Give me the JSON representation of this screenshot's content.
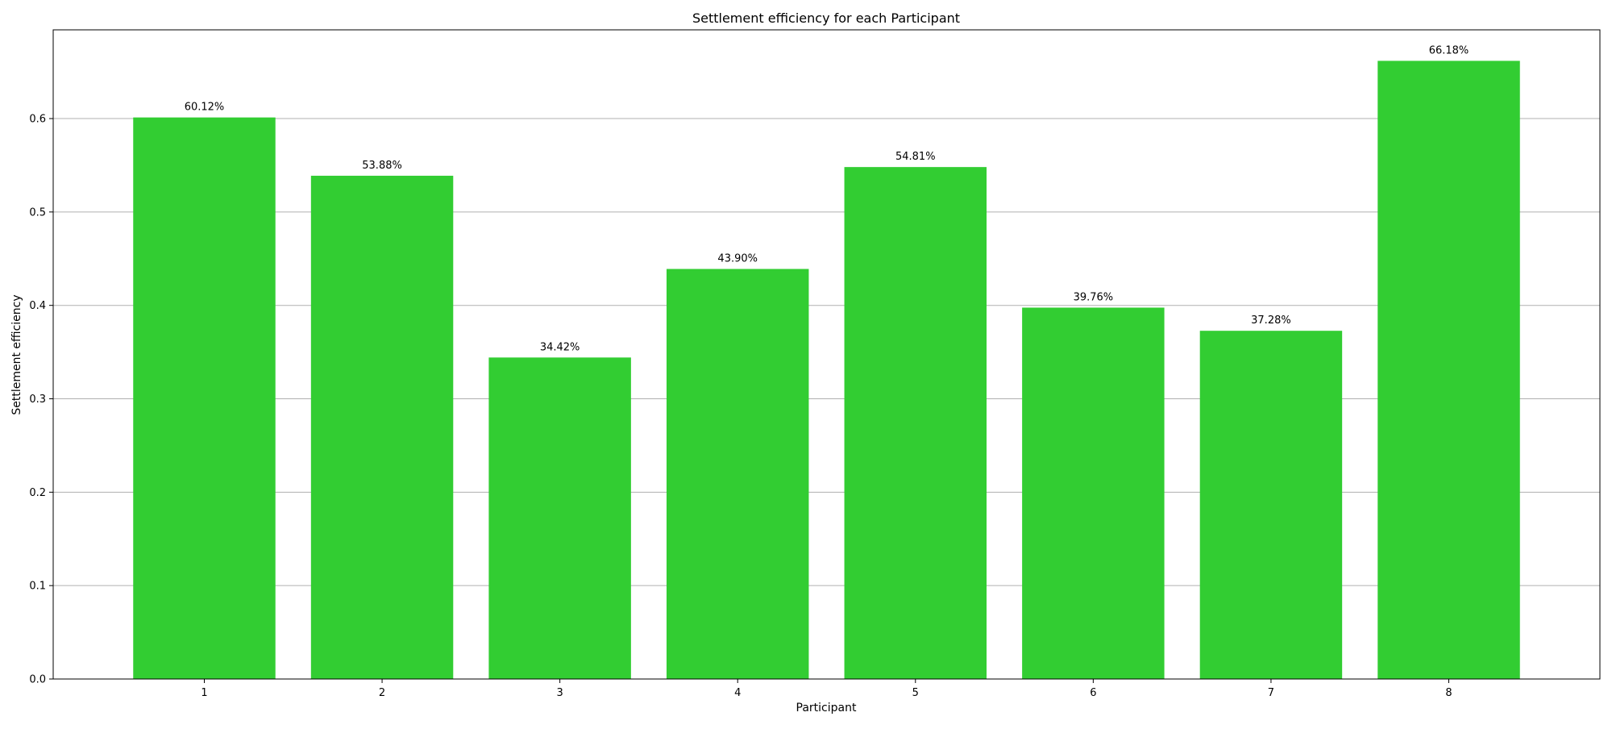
{
  "colors": {
    "bar": "#32CD32",
    "grid": "#b0b0b0",
    "axis": "#000000"
  },
  "chart_data": {
    "type": "bar",
    "title": "Settlement efficiency for each Participant",
    "xlabel": "Participant",
    "ylabel": "Settlement efficiency",
    "categories": [
      "1",
      "2",
      "3",
      "4",
      "5",
      "6",
      "7",
      "8"
    ],
    "values": [
      0.6012,
      0.5388,
      0.3442,
      0.439,
      0.5481,
      0.3976,
      0.3728,
      0.6618
    ],
    "data_labels": [
      "60.12%",
      "53.88%",
      "34.42%",
      "43.90%",
      "54.81%",
      "39.76%",
      "37.28%",
      "66.18%"
    ],
    "ylim": [
      0,
      0.695
    ],
    "yticks": [
      0.0,
      0.1,
      0.2,
      0.3,
      0.4,
      0.5,
      0.6
    ],
    "ytick_labels": [
      "0.0",
      "0.1",
      "0.2",
      "0.3",
      "0.4",
      "0.5",
      "0.6"
    ],
    "grid": "y-major",
    "legend": "none"
  }
}
